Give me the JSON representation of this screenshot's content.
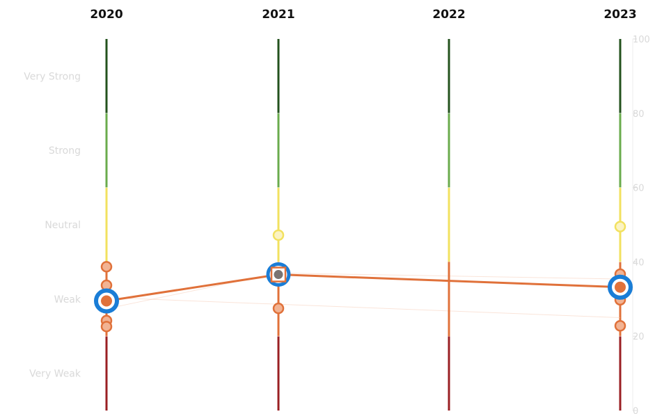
{
  "chart_data": {
    "type": "line",
    "title": "",
    "xlabel": "",
    "ylabel": "",
    "years": [
      "2020",
      "2021",
      "2022",
      "2023"
    ],
    "ylim": [
      0,
      100
    ],
    "y_ticks": [
      0,
      20,
      40,
      60,
      80,
      100
    ],
    "grid": false,
    "bands": [
      {
        "label": "Very Strong",
        "from": 80,
        "to": 100,
        "color": "#23521d"
      },
      {
        "label": "Strong",
        "from": 60,
        "to": 80,
        "color": "#6aab4c"
      },
      {
        "label": "Neutral",
        "from": 40,
        "to": 60,
        "color": "#f2e15f"
      },
      {
        "label": "Weak",
        "from": 20,
        "to": 40,
        "color": "#e0713a"
      },
      {
        "label": "Very Weak",
        "from": 0,
        "to": 20,
        "color": "#9a1f23"
      }
    ],
    "series": [
      {
        "color": "#e0713a",
        "highlight_color": "#1a7dd6",
        "points": [
          {
            "x": "2020",
            "y": 29.5
          },
          {
            "x": "2021",
            "y": 36.6
          },
          {
            "x": "2023",
            "y": 33.2
          }
        ]
      }
    ],
    "other_points": [
      {
        "x": "2020",
        "y": 38.7,
        "category": "weak"
      },
      {
        "x": "2020",
        "y": 33.7,
        "category": "weak"
      },
      {
        "x": "2020",
        "y": 24.2,
        "category": "weak"
      },
      {
        "x": "2020",
        "y": 22.6,
        "category": "weak"
      },
      {
        "x": "2021",
        "y": 47.2,
        "category": "neutral"
      },
      {
        "x": "2021",
        "y": 27.5,
        "category": "weak"
      },
      {
        "x": "2023",
        "y": 49.5,
        "category": "neutral"
      },
      {
        "x": "2023",
        "y": 36.7,
        "category": "weak"
      },
      {
        "x": "2023",
        "y": 29.8,
        "category": "weak"
      },
      {
        "x": "2023",
        "y": 22.8,
        "category": "weak"
      }
    ]
  }
}
